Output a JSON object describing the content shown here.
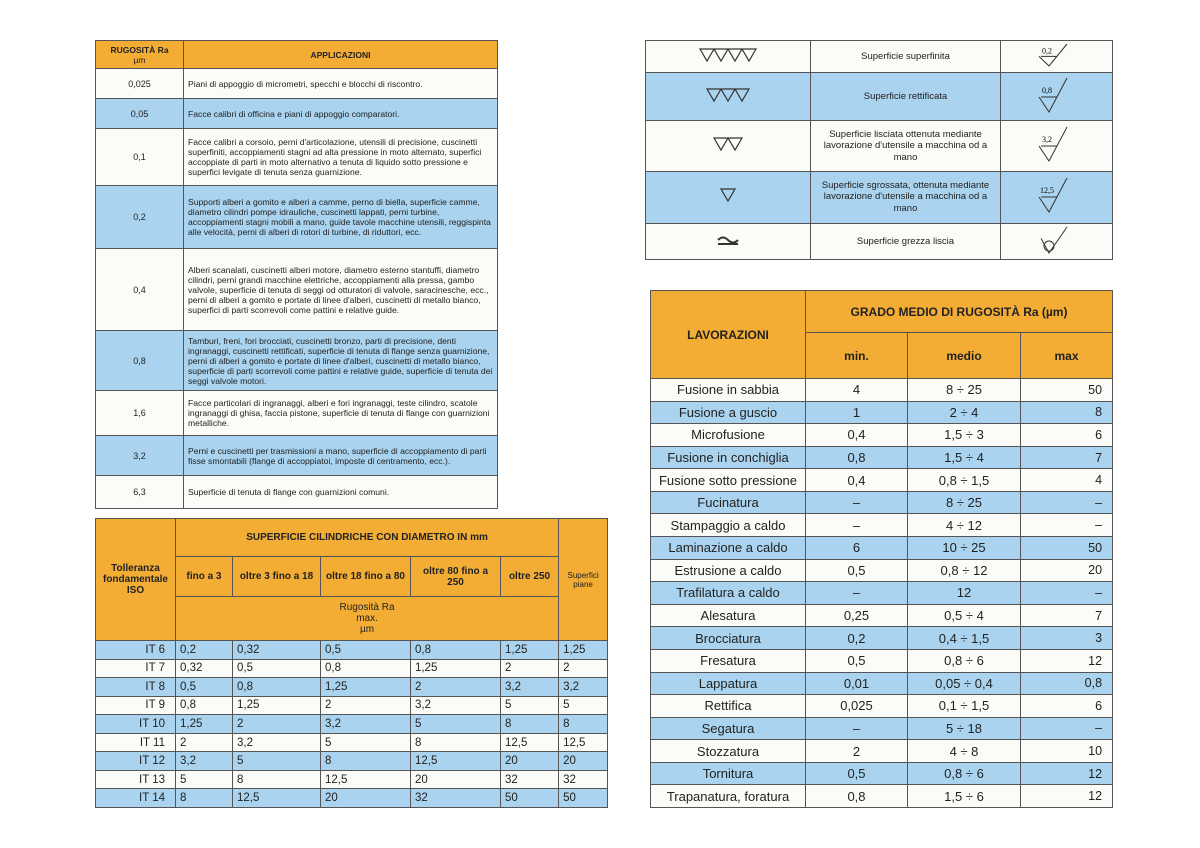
{
  "table_1": {
    "header": {
      "ra": "RUGOSITÀ Ra",
      "unit": "µm",
      "applications": "APPLICAZIONI"
    },
    "rows": [
      [
        "0,025",
        "Piani di appoggio di micrometri, specchi e blocchi di riscontro."
      ],
      [
        "0,05",
        "Facce calibri di officina e piani di appoggio comparatori."
      ],
      [
        "0,1",
        "Facce calibri a corsoio, perni d'articolazione, utensili di precisione, cuscinetti superfiniti, accoppiamenti stagni ad alta pressione in moto alternato, superfici accoppiate di parti in moto alternativo a tenuta di liquido sotto pressione e superfici levigate di tenuta senza guarnizione."
      ],
      [
        "0,2",
        "Supporti alberi a gomito e alberi a camme, perno di biella, superficie camme, diametro cilindri pompe idrauliche, cuscinetti lappati, perni turbine, accoppiamenti stagni mobili a mano, guide tavole macchine utensili, reggispinta alle velocità, perni di alberi di rotori di turbine, di riduttori, ecc."
      ],
      [
        "0,4",
        "Alberi scanalati, cuscinetti alberi motore, diametro esterno stantuffi, diametro cilindri, perni grandi macchine elettriche, accoppiamenti alla pressa, gambo valvole, superficie di tenuta di seggi od otturatori di valvole, saracinesche, ecc., perni di alberi a gomito e portate di linee d'alberi, cuscinetti di metallo bianco, superfici di parti scorrevoli come pattini e relative guide."
      ],
      [
        "0,8",
        "Tamburi, freni, fori brocciati, cuscinetti bronzo, parti di precisione, denti ingranaggi, cuscinetti rettificati, superficie di tenuta di flange senza guarnizione, perni di alberi a gomito e portate di linee d'alberi, cuscinetti di metallo bianco, superficie di parti scorrevoli come pattini e relative guide, superficie di tenuta dei seggi valvole motori."
      ],
      [
        "1,6",
        "Facce particolari di ingranaggi, alberi e fori ingranaggi, teste cilindro, scatole ingranaggi di ghisa, faccia pistone, superficie di tenuta di flange con guarnizioni metalliche."
      ],
      [
        "3,2",
        "Perni e cuscinetti per trasmissioni a mano, superficie di accoppiamento di parti fisse smontabili (flange di accoppiatoi, imposte di centramento, ecc.)."
      ],
      [
        "6,3",
        "Superficie di tenuta di flange con guarnizioni comuni."
      ]
    ]
  },
  "table_2": {
    "rows": [
      [
        "Superficie superfinita",
        "0,2"
      ],
      [
        "Superficie rettificata",
        "0,8"
      ],
      [
        "Superficie lisciata ottenuta mediante lavorazione d'utensile a macchina od a mano",
        "3,2"
      ],
      [
        "Superficie sgrossata, ottenuta mediante lavorazione d'utensile a macchina od a mano",
        "12,5"
      ],
      [
        "Superficie grezza liscia"
      ]
    ]
  },
  "table_3": {
    "header": {
      "tolerance": "Tolleranza fondamentale ISO",
      "group": "SUPERFICIE CILINDRICHE CON DIAMETRO IN mm",
      "columns": [
        "fino a 3",
        "oltre 3 fino a 18",
        "oltre 18 fino a 80",
        "oltre 80 fino a 250",
        "oltre 250"
      ],
      "flat": "Superfici piane",
      "roughness": "Rugosità Ra",
      "max": "max.",
      "unit": "µm"
    },
    "rows": [
      [
        "IT 6",
        "0,2",
        "0,32",
        "0,5",
        "0,8",
        "1,25",
        "1,25"
      ],
      [
        "IT 7",
        "0,32",
        "0,5",
        "0,8",
        "1,25",
        "2",
        "2"
      ],
      [
        "IT 8",
        "0,5",
        "0,8",
        "1,25",
        "2",
        "3,2",
        "3,2"
      ],
      [
        "IT 9",
        "0,8",
        "1,25",
        "2",
        "3,2",
        "5",
        "5"
      ],
      [
        "IT 10",
        "1,25",
        "2",
        "3,2",
        "5",
        "8",
        "8"
      ],
      [
        "IT 11",
        "2",
        "3,2",
        "5",
        "8",
        "12,5",
        "12,5"
      ],
      [
        "IT 12",
        "3,2",
        "5",
        "8",
        "12,5",
        "20",
        "20"
      ],
      [
        "IT 13",
        "5",
        "8",
        "12,5",
        "20",
        "32",
        "32"
      ],
      [
        "IT 14",
        "8",
        "12,5",
        "20",
        "32",
        "50",
        "50"
      ]
    ]
  },
  "table_4": {
    "header": {
      "processes": "LAVORAZIONI",
      "group": "GRADO MEDIO DI RUGOSITÀ Ra (µm)",
      "columns": [
        "min.",
        "medio",
        "max"
      ]
    },
    "rows": [
      [
        "Fusione in sabbia",
        "4",
        "8 ÷ 25",
        "50"
      ],
      [
        "Fusione a guscio",
        "1",
        "2 ÷ 4",
        "8"
      ],
      [
        "Microfusione",
        "0,4",
        "1,5 ÷ 3",
        "6"
      ],
      [
        "Fusione in conchiglia",
        "0,8",
        "1,5 ÷ 4",
        "7"
      ],
      [
        "Fusione sotto pressione",
        "0,4",
        "0,8 ÷ 1,5",
        "4"
      ],
      [
        "Fucinatura",
        "–",
        "8 ÷ 25",
        "–"
      ],
      [
        "Stampaggio a caldo",
        "–",
        "4 ÷ 12",
        "–"
      ],
      [
        "Laminazione a caldo",
        "6",
        "10 ÷ 25",
        "50"
      ],
      [
        "Estrusione a caldo",
        "0,5",
        "0,8 ÷ 12",
        "20"
      ],
      [
        "Trafilatura a caldo",
        "–",
        "12",
        "–"
      ],
      [
        "Alesatura",
        "0,25",
        "0,5 ÷ 4",
        "7"
      ],
      [
        "Brocciatura",
        "0,2",
        "0,4 ÷ 1,5",
        "3"
      ],
      [
        "Fresatura",
        "0,5",
        "0,8 ÷ 6",
        "12"
      ],
      [
        "Lappatura",
        "0,01",
        "0,05 ÷ 0,4",
        "0,8"
      ],
      [
        "Rettifica",
        "0,025",
        "0,1 ÷ 1,5",
        "6"
      ],
      [
        "Segatura",
        "–",
        "5 ÷ 18",
        "–"
      ],
      [
        "Stozzatura",
        "2",
        "4 ÷ 8",
        "10"
      ],
      [
        "Tornitura",
        "0,5",
        "0,8 ÷ 6",
        "12"
      ],
      [
        "Trapanatura, foratura",
        "0,8",
        "1,5 ÷ 6",
        "12"
      ]
    ]
  }
}
